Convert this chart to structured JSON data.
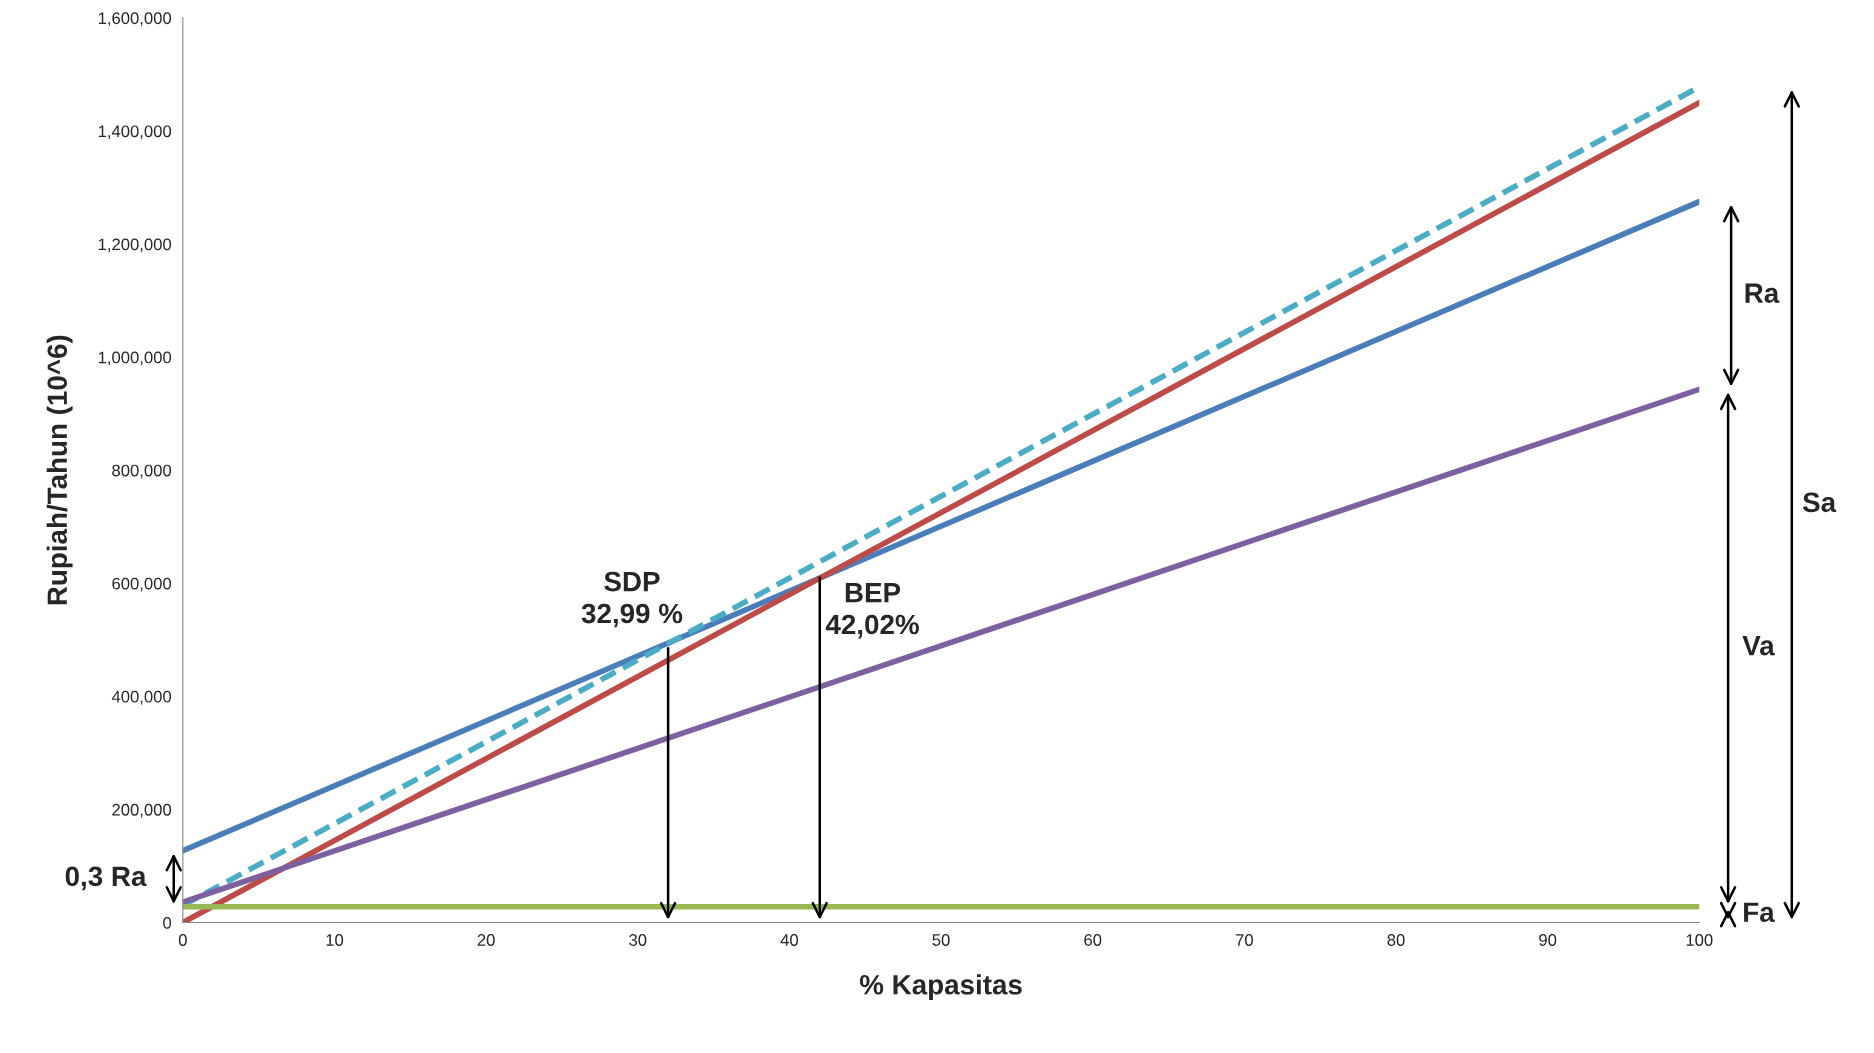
{
  "chart_data": {
    "type": "line",
    "xlabel": "% Kapasitas",
    "ylabel": "Rupiah/Tahun (10^6)",
    "x": [
      0,
      100
    ],
    "series": [
      {
        "color": "#4a7ebb",
        "values": [
          127000,
          1275000
        ],
        "line_style": "solid"
      },
      {
        "color": "#be4b48",
        "values": [
          0,
          1450000
        ],
        "line_style": "solid"
      },
      {
        "color": "#4bacc6",
        "values": [
          30000,
          1478000
        ],
        "line_style": "dashed"
      },
      {
        "color": "#7d60a0",
        "values": [
          36000,
          943000
        ],
        "line_style": "solid"
      },
      {
        "color": "#98b954",
        "values": [
          28000,
          28000
        ],
        "line_style": "solid"
      }
    ],
    "xlim": [
      0,
      100
    ],
    "xticks": [
      0,
      10,
      20,
      30,
      40,
      50,
      60,
      70,
      80,
      90,
      100
    ],
    "ylim": [
      0,
      1600000
    ],
    "yticks": [
      0,
      {
        "value": 200000,
        "label": "200,000"
      },
      {
        "value": 400000,
        "label": "400,000"
      },
      {
        "value": 600000,
        "label": "600,000"
      },
      {
        "value": 800000,
        "label": "800,000"
      },
      {
        "value": 1000000,
        "label": "1,000,000"
      },
      {
        "value": 1200000,
        "label": "1,200,000"
      },
      {
        "value": 1400000,
        "label": "1,400,000"
      },
      {
        "value": 1600000,
        "label": "1,600,000"
      }
    ],
    "grid": false,
    "legend": false,
    "marker": "none",
    "annotations": [
      {
        "text": "SDP\n32,99 %",
        "x": 32,
        "y": 490000
      },
      {
        "text": "BEP\n42,02%",
        "x": 42,
        "y": 615000
      },
      "0,3 Ra",
      "Ra",
      "Va",
      "Fa",
      "Sa"
    ]
  }
}
